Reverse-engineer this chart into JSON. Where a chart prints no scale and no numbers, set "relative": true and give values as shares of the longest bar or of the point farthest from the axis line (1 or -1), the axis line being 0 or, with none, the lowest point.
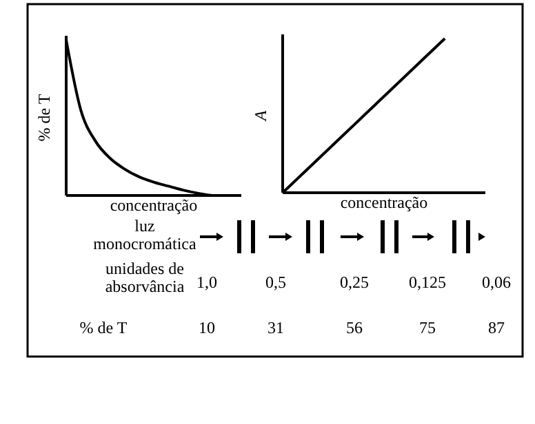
{
  "chart_data": [
    {
      "type": "line",
      "relative": true,
      "xlabel": "concentração",
      "ylabel": "% de T",
      "categories": [
        null,
        null,
        null,
        null,
        null,
        null,
        null,
        null,
        null,
        null,
        null,
        null,
        null
      ],
      "series": [
        {
          "color": "#000000",
          "values": [
            1,
            0.55,
            0.35,
            0.24,
            0.17,
            0.12,
            0.086,
            0.06,
            0.035,
            0.015,
            0,
            null,
            null
          ]
        }
      ]
    },
    {
      "type": "line",
      "relative": true,
      "xlabel": "concentração",
      "ylabel": "A",
      "categories": [
        null,
        null,
        null,
        null,
        null,
        null
      ],
      "series": [
        {
          "color": "#000000",
          "values": [
            0,
            0.25,
            0.5,
            0.75,
            1,
            null
          ]
        }
      ]
    },
    {
      "type": "other",
      "annotations": [
        "luz monocromática",
        "unidades de absorvância",
        "1,0",
        "0,5",
        "0,25",
        "0,125",
        "0,06",
        "% de T",
        "10",
        "31",
        "56",
        "75",
        "87"
      ]
    }
  ]
}
